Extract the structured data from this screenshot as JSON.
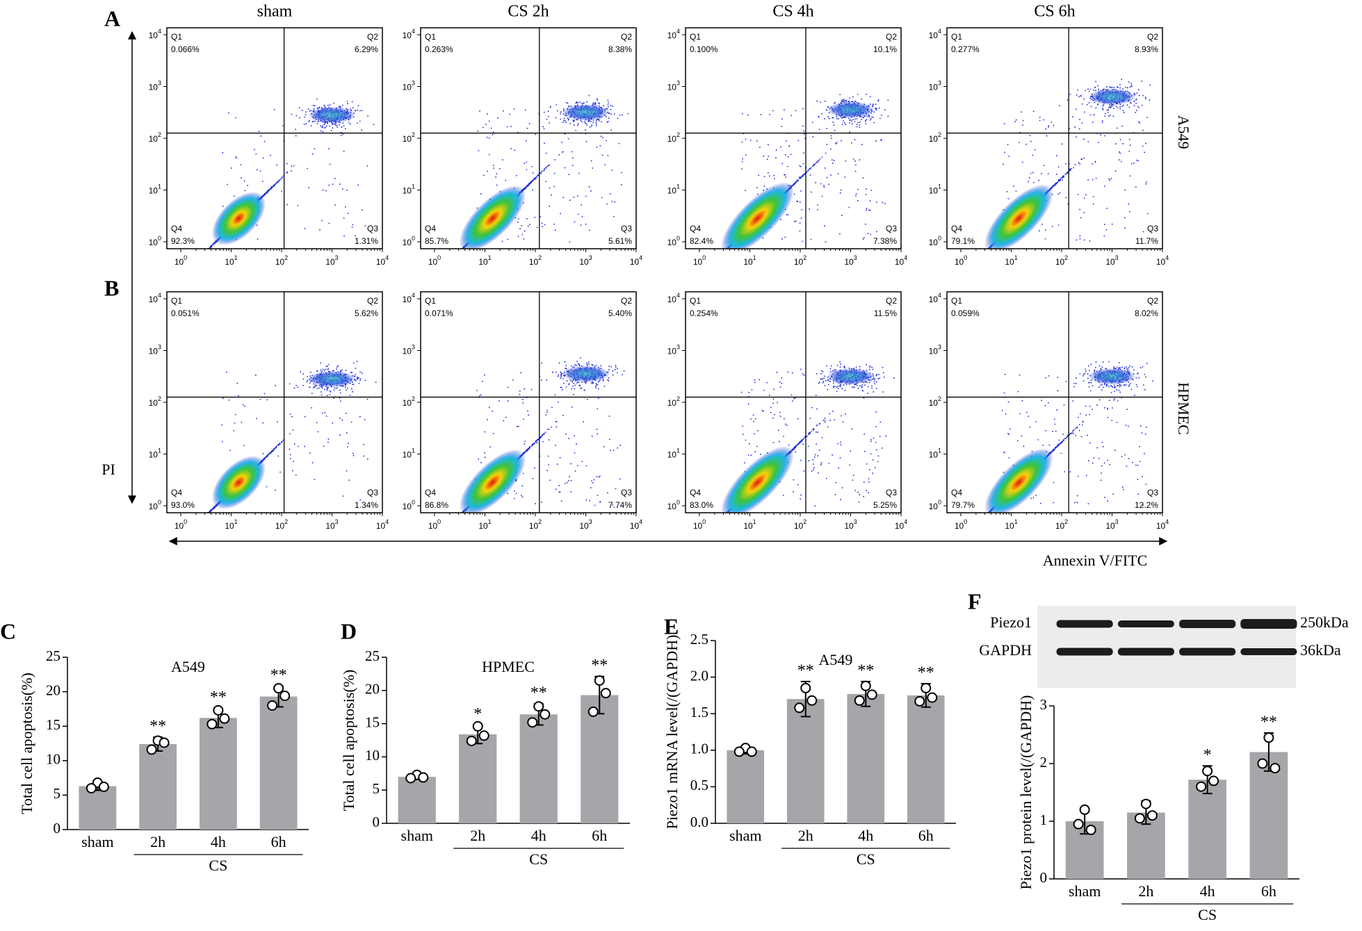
{
  "flow": {
    "panel_labels": [
      "A",
      "B"
    ],
    "columns": [
      "sham",
      "CS 2h",
      "CS 4h",
      "CS 6h"
    ],
    "rows": [
      "A549",
      "HPMEC"
    ],
    "y_axis_label": "PI",
    "x_axis_label": "Annexin V/FITC",
    "quadrant_names": [
      "Q1",
      "Q2",
      "Q3",
      "Q4"
    ],
    "tick_base": "10",
    "tick_exponents": [
      "0",
      "1",
      "2",
      "3",
      "4"
    ],
    "plots": [
      [
        [
          "0.066%",
          "6.29%",
          "1.31%",
          "92.3%"
        ],
        [
          "0.263%",
          "8.38%",
          "5.61%",
          "85.7%"
        ],
        [
          "0.100%",
          "10.1%",
          "7.38%",
          "82.4%"
        ],
        [
          "0.277%",
          "8.93%",
          "11.7%",
          "79.1%"
        ]
      ],
      [
        [
          "0.051%",
          "5.62%",
          "1.34%",
          "93.0%"
        ],
        [
          "0.071%",
          "5.40%",
          "7.74%",
          "86.8%"
        ],
        [
          "0.254%",
          "11.5%",
          "5.25%",
          "83.0%"
        ],
        [
          "0.059%",
          "8.02%",
          "12.2%",
          "79.7%"
        ]
      ]
    ]
  },
  "chart_data": [
    {
      "type": "bar",
      "panel": "C",
      "title": "A549",
      "y_label": "Total cell apoptosis(%)",
      "categories": [
        "sham",
        "2h",
        "4h",
        "6h"
      ],
      "group_label": "CS",
      "values": [
        6.3,
        12.4,
        16.2,
        19.3
      ],
      "errors": [
        0.6,
        1.0,
        1.4,
        1.5
      ],
      "points": [
        [
          6.8,
          6.0,
          6.2
        ],
        [
          12.9,
          11.6,
          12.6
        ],
        [
          17.3,
          15.3,
          16.1
        ],
        [
          20.5,
          18.0,
          19.4
        ]
      ],
      "significance": [
        null,
        "**",
        "**",
        "**"
      ],
      "color": "#a6a6aa",
      "ylim": [
        0,
        25
      ],
      "yticks": [
        0,
        5,
        10,
        15,
        20,
        25
      ]
    },
    {
      "type": "bar",
      "panel": "D",
      "title": "HPMEC",
      "y_label": "Total cell apoptosis(%)",
      "categories": [
        "sham",
        "2h",
        "4h",
        "6h"
      ],
      "group_label": "CS",
      "values": [
        7.0,
        13.4,
        16.4,
        19.3
      ],
      "errors": [
        0.4,
        1.4,
        1.6,
        2.8
      ],
      "points": [
        [
          7.3,
          6.8,
          6.9
        ],
        [
          14.6,
          12.4,
          13.2
        ],
        [
          17.6,
          15.2,
          16.4
        ],
        [
          21.5,
          16.8,
          19.6
        ]
      ],
      "significance": [
        null,
        "*",
        "**",
        "**"
      ],
      "color": "#a6a6aa",
      "ylim": [
        0,
        25
      ],
      "yticks": [
        0,
        5,
        10,
        15,
        20,
        25
      ]
    },
    {
      "type": "bar",
      "panel": "E",
      "title": "A549",
      "y_label": "Piezo1 mRNA level(/(GAPDH)",
      "categories": [
        "sham",
        "2h",
        "4h",
        "6h"
      ],
      "group_label": "CS",
      "values": [
        1.0,
        1.7,
        1.77,
        1.75
      ],
      "errors": [
        0.05,
        0.24,
        0.17,
        0.16
      ],
      "points": [
        [
          1.03,
          0.98,
          0.98
        ],
        [
          1.85,
          1.58,
          1.68
        ],
        [
          1.88,
          1.68,
          1.76
        ],
        [
          1.85,
          1.67,
          1.72
        ]
      ],
      "significance": [
        null,
        "**",
        "**",
        "**"
      ],
      "color": "#a6a6aa",
      "ylim": [
        0,
        2.5
      ],
      "yticks": [
        {
          "value": 0,
          "label": "0.0"
        },
        0.5,
        {
          "value": 1,
          "label": "1.0"
        },
        1.5,
        {
          "value": 2,
          "label": "2.0"
        },
        2.5
      ]
    },
    {
      "type": "bar",
      "panel": "F",
      "y_label": "Piezo1 protein level(/(GAPDH)",
      "categories": [
        "sham",
        "2h",
        "4h",
        "6h"
      ],
      "group_label": "CS",
      "values": [
        1.0,
        1.15,
        1.72,
        2.2
      ],
      "errors": [
        0.22,
        0.2,
        0.24,
        0.33
      ],
      "points": [
        [
          1.2,
          0.95,
          0.85
        ],
        [
          1.3,
          1.05,
          1.1
        ],
        [
          1.87,
          1.6,
          1.7
        ],
        [
          2.45,
          2.0,
          1.92
        ]
      ],
      "significance": [
        null,
        null,
        "*",
        "**"
      ],
      "color": "#a6a6aa",
      "ylim": [
        0,
        3
      ],
      "yticks": [
        0,
        1,
        2,
        3
      ],
      "blot": {
        "bands": [
          "Piezo1",
          "GAPDH"
        ],
        "sizes": [
          "250kDa",
          "36kDa"
        ]
      }
    }
  ]
}
